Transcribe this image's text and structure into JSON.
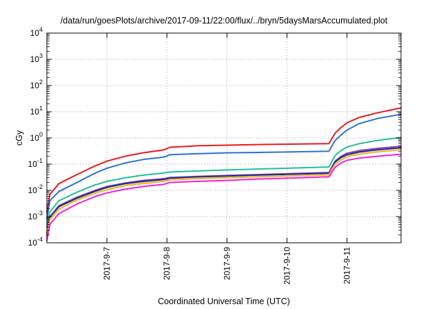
{
  "chart_data": {
    "type": "line",
    "title": "/data/run/goesPlots/archive/2017-09-11/22:00/flux/../bryn/5daysMarsAccumulated.plot",
    "xlabel": "Coordinated Universal Time (UTC)",
    "ylabel": "cGy",
    "yscale": "log",
    "ylim": [
      0.0001,
      10000
    ],
    "xlim": [
      0,
      5.9
    ],
    "x_ticks": [
      {
        "x": 1,
        "label": "2017-9-7"
      },
      {
        "x": 2,
        "label": "2017-9-8"
      },
      {
        "x": 3,
        "label": "2017-9-9"
      },
      {
        "x": 4,
        "label": "2017-9-10"
      },
      {
        "x": 5,
        "label": "2017-9-11"
      }
    ],
    "y_ticks": [
      {
        "value": 0.0001,
        "base": "10",
        "exp": "-4"
      },
      {
        "value": 0.001,
        "base": "10",
        "exp": "-3"
      },
      {
        "value": 0.01,
        "base": "10",
        "exp": "-2"
      },
      {
        "value": 0.1,
        "base": "10",
        "exp": "-1"
      },
      {
        "value": 1,
        "base": "10",
        "exp": "0"
      },
      {
        "value": 10,
        "base": "10",
        "exp": "1"
      },
      {
        "value": 100,
        "base": "10",
        "exp": "2"
      },
      {
        "value": 1000,
        "base": "10",
        "exp": "3"
      },
      {
        "value": 10000,
        "base": "10",
        "exp": "4"
      }
    ],
    "grid": true,
    "series": [
      {
        "color": "#e8191c",
        "x": [
          0,
          0.05,
          0.2,
          0.5,
          0.8,
          1.0,
          1.3,
          1.6,
          1.95,
          2.05,
          2.5,
          3.0,
          3.5,
          4.0,
          4.7,
          4.75,
          4.8,
          4.9,
          5.0,
          5.2,
          5.5,
          5.9
        ],
        "y": [
          0.0015,
          0.007,
          0.018,
          0.04,
          0.085,
          0.13,
          0.2,
          0.27,
          0.35,
          0.44,
          0.5,
          0.53,
          0.56,
          0.58,
          0.61,
          0.95,
          1.5,
          2.5,
          3.8,
          6,
          9,
          14
        ]
      },
      {
        "color": "#2b6fd6",
        "x": [
          0,
          0.05,
          0.2,
          0.5,
          0.8,
          1.0,
          1.3,
          1.6,
          1.95,
          2.05,
          2.5,
          3.0,
          3.5,
          4.0,
          4.7,
          4.75,
          4.8,
          4.9,
          5.0,
          5.2,
          5.5,
          5.9
        ],
        "y": [
          0.0008,
          0.004,
          0.009,
          0.02,
          0.045,
          0.07,
          0.11,
          0.15,
          0.185,
          0.23,
          0.25,
          0.27,
          0.28,
          0.29,
          0.31,
          0.5,
          0.8,
          1.3,
          2.0,
          3.5,
          5.5,
          8
        ]
      },
      {
        "color": "#1fbf9c",
        "x": [
          0,
          0.05,
          0.2,
          0.5,
          0.8,
          1.0,
          1.3,
          1.6,
          1.95,
          2.05,
          2.5,
          3.0,
          3.5,
          4.0,
          4.7,
          4.75,
          4.8,
          4.9,
          5.0,
          5.2,
          5.5,
          5.9
        ],
        "y": [
          0.0004,
          0.0015,
          0.004,
          0.0085,
          0.016,
          0.022,
          0.03,
          0.038,
          0.046,
          0.05,
          0.055,
          0.06,
          0.065,
          0.07,
          0.078,
          0.13,
          0.21,
          0.33,
          0.45,
          0.6,
          0.8,
          1.05
        ]
      },
      {
        "color": "#8a3fc2",
        "x": [
          0,
          0.05,
          0.2,
          0.5,
          0.8,
          1.0,
          1.3,
          1.6,
          1.95,
          2.05,
          2.5,
          3.0,
          3.5,
          4.0,
          4.7,
          4.75,
          4.8,
          4.9,
          5.0,
          5.2,
          5.5,
          5.9
        ],
        "y": [
          0.00025,
          0.001,
          0.0026,
          0.0055,
          0.01,
          0.014,
          0.019,
          0.024,
          0.028,
          0.031,
          0.034,
          0.037,
          0.04,
          0.043,
          0.048,
          0.08,
          0.13,
          0.2,
          0.26,
          0.33,
          0.4,
          0.48
        ]
      },
      {
        "color": "#1a2a8a",
        "x": [
          0,
          0.05,
          0.2,
          0.5,
          0.8,
          1.0,
          1.3,
          1.6,
          1.95,
          2.05,
          2.5,
          3.0,
          3.5,
          4.0,
          4.7,
          4.75,
          4.8,
          4.9,
          5.0,
          5.2,
          5.5,
          5.9
        ],
        "y": [
          0.00022,
          0.0009,
          0.0024,
          0.005,
          0.0092,
          0.013,
          0.018,
          0.022,
          0.026,
          0.029,
          0.032,
          0.035,
          0.038,
          0.041,
          0.045,
          0.075,
          0.12,
          0.18,
          0.23,
          0.29,
          0.35,
          0.42
        ]
      },
      {
        "color": "#f2e12b",
        "x": [
          0,
          0.05,
          0.2,
          0.5,
          0.8,
          1.0,
          1.3,
          1.6,
          1.95,
          2.05,
          2.5,
          3.0,
          3.5,
          4.0,
          4.7,
          4.75,
          4.8,
          4.9,
          5.0,
          5.2,
          5.5,
          5.9
        ],
        "y": [
          0.0002,
          0.0008,
          0.002,
          0.0044,
          0.008,
          0.011,
          0.0155,
          0.019,
          0.023,
          0.026,
          0.029,
          0.031,
          0.034,
          0.036,
          0.04,
          0.065,
          0.1,
          0.15,
          0.2,
          0.25,
          0.3,
          0.36
        ]
      },
      {
        "color": "#f0b14a",
        "x": [
          0,
          0.05,
          0.2,
          0.5,
          0.8,
          1.0,
          1.3,
          1.6,
          1.95,
          2.05,
          2.5,
          3.0,
          3.5,
          4.0,
          4.7,
          4.75,
          4.8,
          4.9,
          5.0,
          5.2,
          5.5,
          5.9
        ],
        "y": [
          0.00019,
          0.00075,
          0.0019,
          0.0042,
          0.0077,
          0.0105,
          0.015,
          0.018,
          0.022,
          0.025,
          0.028,
          0.03,
          0.033,
          0.035,
          0.039,
          0.063,
          0.098,
          0.145,
          0.19,
          0.24,
          0.29,
          0.35
        ]
      },
      {
        "color": "#f21fd6",
        "x": [
          0,
          0.05,
          0.2,
          0.5,
          0.8,
          1.0,
          1.3,
          1.6,
          1.95,
          2.05,
          2.5,
          3.0,
          3.5,
          4.0,
          4.7,
          4.75,
          4.8,
          4.9,
          5.0,
          5.2,
          5.5,
          5.9
        ],
        "y": [
          0.00012,
          0.0005,
          0.0013,
          0.003,
          0.0058,
          0.008,
          0.011,
          0.014,
          0.017,
          0.02,
          0.022,
          0.024,
          0.027,
          0.029,
          0.033,
          0.05,
          0.075,
          0.11,
          0.14,
          0.17,
          0.2,
          0.24
        ]
      }
    ]
  }
}
